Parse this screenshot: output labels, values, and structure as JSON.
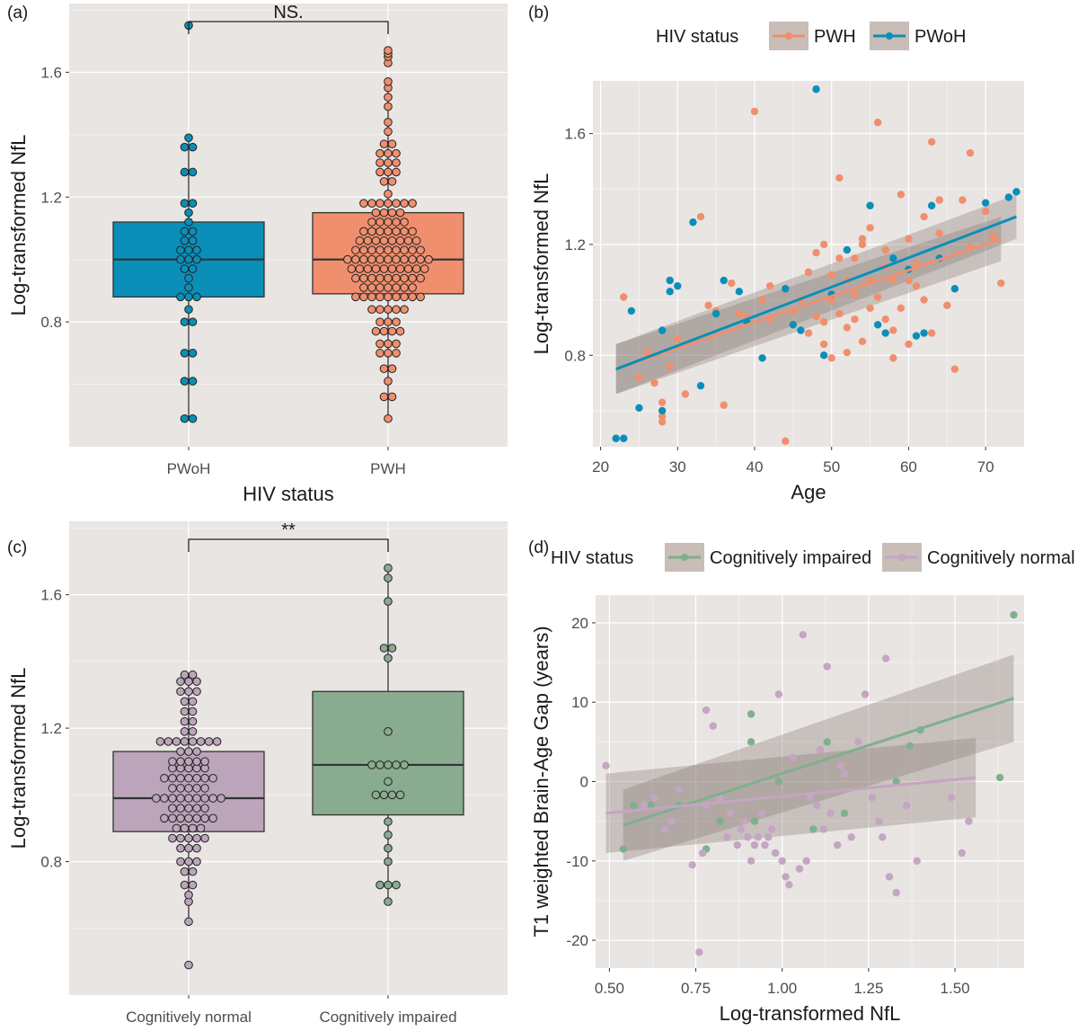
{
  "chart_data": [
    {
      "id": "a",
      "type": "boxplot-dotplot",
      "panel_label": "(a)",
      "xlabel": "HIV status",
      "ylabel": "Log-transformed NfL",
      "categories": [
        "PWoH",
        "PWH"
      ],
      "colors": [
        "#0a8fb8",
        "#f08f6e"
      ],
      "ylim": [
        0.4,
        1.82
      ],
      "yticks": [
        0.8,
        1.2,
        1.6
      ],
      "ytick_labels": [
        "0.8",
        "1.2",
        "1.6"
      ],
      "significance": "NS.",
      "boxes": [
        {
          "q1": 0.88,
          "median": 1.0,
          "q3": 1.12,
          "whisker_low": 0.49,
          "whisker_high": 1.39
        },
        {
          "q1": 0.89,
          "median": 1.0,
          "q3": 1.15,
          "whisker_low": 0.49,
          "whisker_high": 1.57
        }
      ],
      "points": [
        [
          0.49,
          0.49,
          0.61,
          0.61,
          0.7,
          0.7,
          0.8,
          0.8,
          0.84,
          0.88,
          0.88,
          0.88,
          0.91,
          0.94,
          0.97,
          0.97,
          1.0,
          1.0,
          1.0,
          1.03,
          1.03,
          1.03,
          1.06,
          1.06,
          1.09,
          1.09,
          1.12,
          1.15,
          1.18,
          1.18,
          1.28,
          1.28,
          1.36,
          1.36,
          1.39,
          1.75
        ],
        [
          0.49,
          0.56,
          0.56,
          0.61,
          0.65,
          0.65,
          0.7,
          0.7,
          0.7,
          0.73,
          0.73,
          0.73,
          0.77,
          0.77,
          0.77,
          0.77,
          0.8,
          0.8,
          0.8,
          0.84,
          0.84,
          0.84,
          0.84,
          0.84,
          0.88,
          0.88,
          0.88,
          0.88,
          0.88,
          0.88,
          0.88,
          0.88,
          0.88,
          0.91,
          0.91,
          0.91,
          0.91,
          0.91,
          0.91,
          0.91,
          0.94,
          0.94,
          0.94,
          0.94,
          0.94,
          0.94,
          0.94,
          0.94,
          0.94,
          0.97,
          0.97,
          0.97,
          0.97,
          0.97,
          0.97,
          0.97,
          0.97,
          0.97,
          0.97,
          1.0,
          1.0,
          1.0,
          1.0,
          1.0,
          1.0,
          1.0,
          1.0,
          1.0,
          1.0,
          1.0,
          1.03,
          1.03,
          1.03,
          1.03,
          1.03,
          1.03,
          1.03,
          1.03,
          1.03,
          1.06,
          1.06,
          1.06,
          1.06,
          1.06,
          1.06,
          1.06,
          1.06,
          1.09,
          1.09,
          1.09,
          1.09,
          1.09,
          1.09,
          1.09,
          1.12,
          1.12,
          1.12,
          1.12,
          1.12,
          1.15,
          1.15,
          1.15,
          1.15,
          1.18,
          1.18,
          1.18,
          1.18,
          1.18,
          1.18,
          1.18,
          1.21,
          1.25,
          1.25,
          1.28,
          1.28,
          1.28,
          1.31,
          1.31,
          1.31,
          1.34,
          1.34,
          1.34,
          1.37,
          1.37,
          1.41,
          1.44,
          1.49,
          1.52,
          1.55,
          1.57,
          1.63,
          1.65,
          1.66,
          1.67
        ]
      ]
    },
    {
      "id": "b",
      "type": "scatter",
      "panel_label": "(b)",
      "xlabel": "Age",
      "ylabel": "Log-transformed NfL",
      "legend_title": "HIV status",
      "legend_position": "top",
      "xlim": [
        19,
        75
      ],
      "ylim": [
        0.47,
        1.79
      ],
      "xticks": [
        20,
        30,
        40,
        50,
        60,
        70
      ],
      "xtick_labels": [
        "20",
        "30",
        "40",
        "50",
        "60",
        "70"
      ],
      "yticks": [
        0.8,
        1.2,
        1.6
      ],
      "ytick_labels": [
        "0.8",
        "1.2",
        "1.6"
      ],
      "series": [
        {
          "name": "PWH",
          "color": "#f08f6e",
          "fit": {
            "x0": 22,
            "y0": 0.75,
            "x1": 72,
            "y1": 1.22,
            "se0": 0.09,
            "se1": 0.08
          },
          "x": [
            23,
            25,
            26,
            27,
            28,
            28,
            28,
            29,
            31,
            33,
            34,
            35,
            36,
            37,
            38,
            39,
            40,
            41,
            42,
            44,
            45,
            46,
            47,
            48,
            49,
            49,
            50,
            50,
            51,
            51,
            52,
            52,
            53,
            53,
            54,
            54,
            55,
            55,
            56,
            56,
            57,
            57,
            58,
            58,
            59,
            59,
            60,
            60,
            61,
            62,
            62,
            63,
            63,
            64,
            65,
            66,
            67,
            68,
            68,
            70,
            71,
            72,
            42,
            30,
            49,
            51,
            55,
            47,
            52,
            57,
            61,
            64,
            48,
            53,
            58,
            60,
            54,
            50
          ],
          "y": [
            1.01,
            0.72,
            0.81,
            0.7,
            0.63,
            0.58,
            0.56,
            0.76,
            0.66,
            1.3,
            0.98,
            0.96,
            0.62,
            1.06,
            0.95,
            0.94,
            1.68,
            1.0,
            0.93,
            0.49,
            0.96,
            1.0,
            0.88,
            1.17,
            0.84,
            0.92,
            1.0,
            1.09,
            1.44,
            0.95,
            0.81,
            1.07,
            1.15,
            0.93,
            1.2,
            0.85,
            0.97,
            1.07,
            1.64,
            1.01,
            1.12,
            0.93,
            1.07,
            0.79,
            1.38,
            0.97,
            1.22,
            0.84,
            1.05,
            1.3,
            1.0,
            1.57,
            0.88,
            1.36,
            0.98,
            0.75,
            1.36,
            1.53,
            1.19,
            1.32,
            1.23,
            1.06,
            1.05,
            0.86,
            1.2,
            1.15,
            1.26,
            1.1,
            0.9,
            1.18,
            1.13,
            1.24,
            0.94,
            1.02,
            0.89,
            1.07,
            1.22,
            0.79
          ]
        },
        {
          "name": "PWoH",
          "color": "#0a8fb8",
          "fit": {
            "x0": 22,
            "y0": 0.75,
            "x1": 74,
            "y1": 1.3,
            "se0": 0.09,
            "se1": 0.08
          },
          "x": [
            22,
            23,
            24,
            25,
            28,
            28,
            29,
            29,
            30,
            32,
            33,
            35,
            36,
            38,
            39,
            41,
            44,
            45,
            46,
            48,
            49,
            50,
            52,
            55,
            56,
            57,
            58,
            60,
            61,
            62,
            63,
            64,
            66,
            70,
            73,
            74
          ],
          "y": [
            0.5,
            0.5,
            0.96,
            0.61,
            0.89,
            0.6,
            1.07,
            1.03,
            1.05,
            1.28,
            0.69,
            0.95,
            1.07,
            1.03,
            0.92,
            0.79,
            1.04,
            0.91,
            0.89,
            1.76,
            0.8,
            1.02,
            1.18,
            1.34,
            0.91,
            0.88,
            1.15,
            1.11,
            0.87,
            0.88,
            1.34,
            1.15,
            1.04,
            1.35,
            1.37,
            1.39
          ]
        }
      ]
    },
    {
      "id": "c",
      "type": "boxplot-dotplot",
      "panel_label": "(c)",
      "xlabel": "",
      "ylabel": "Log-transformed NfL",
      "categories": [
        "Cognitively normal",
        "Cognitively impaired"
      ],
      "colors": [
        "#bca5ba",
        "#89ab8f"
      ],
      "ylim": [
        0.4,
        1.82
      ],
      "yticks": [
        0.8,
        1.2,
        1.6
      ],
      "ytick_labels": [
        "0.8",
        "1.2",
        "1.6"
      ],
      "significance": "**",
      "boxes": [
        {
          "q1": 0.89,
          "median": 0.99,
          "q3": 1.13,
          "whisker_low": 0.62,
          "whisker_high": 1.36
        },
        {
          "q1": 0.94,
          "median": 1.09,
          "q3": 1.31,
          "whisker_low": 0.68,
          "whisker_high": 1.68
        }
      ],
      "points": [
        [
          0.49,
          0.62,
          0.68,
          0.7,
          0.73,
          0.73,
          0.77,
          0.77,
          0.8,
          0.8,
          0.8,
          0.84,
          0.84,
          0.84,
          0.87,
          0.87,
          0.87,
          0.87,
          0.87,
          0.9,
          0.9,
          0.9,
          0.9,
          0.93,
          0.93,
          0.93,
          0.93,
          0.93,
          0.93,
          0.93,
          0.96,
          0.96,
          0.96,
          0.96,
          0.96,
          0.99,
          0.99,
          0.99,
          0.99,
          0.99,
          0.99,
          0.99,
          0.99,
          0.99,
          1.02,
          1.02,
          1.02,
          1.02,
          1.02,
          1.05,
          1.05,
          1.05,
          1.05,
          1.05,
          1.05,
          1.05,
          1.08,
          1.08,
          1.08,
          1.08,
          1.08,
          1.1,
          1.1,
          1.1,
          1.1,
          1.1,
          1.13,
          1.13,
          1.13,
          1.16,
          1.16,
          1.16,
          1.16,
          1.16,
          1.16,
          1.16,
          1.16,
          1.19,
          1.19,
          1.22,
          1.22,
          1.25,
          1.25,
          1.28,
          1.28,
          1.31,
          1.31,
          1.31,
          1.34,
          1.34,
          1.34,
          1.36,
          1.36
        ],
        [
          0.68,
          0.73,
          0.73,
          0.73,
          0.8,
          0.84,
          0.88,
          0.92,
          1.0,
          1.0,
          1.0,
          1.0,
          1.04,
          1.09,
          1.09,
          1.09,
          1.09,
          1.09,
          1.19,
          1.41,
          1.44,
          1.44,
          1.58,
          1.65,
          1.68
        ]
      ]
    },
    {
      "id": "d",
      "type": "scatter",
      "panel_label": "(d)",
      "xlabel": "Log-transformed NfL",
      "ylabel": "T1 weighted Brain-Age Gap (years)",
      "legend_title": "HIV status",
      "legend_position": "top",
      "xlim": [
        0.46,
        1.7
      ],
      "ylim": [
        -23.5,
        23.5
      ],
      "xticks": [
        0.5,
        0.75,
        1.0,
        1.25,
        1.5
      ],
      "xtick_labels": [
        "0.50",
        "0.75",
        "1.00",
        "1.25",
        "1.50"
      ],
      "yticks": [
        -20,
        -10,
        0,
        10,
        20
      ],
      "ytick_labels": [
        "-20",
        "-10",
        "0",
        "10",
        "20"
      ],
      "series": [
        {
          "name": "Cognitively impaired",
          "color": "#7fb08c",
          "fit": {
            "x0": 0.54,
            "y0": -5.5,
            "x1": 1.67,
            "y1": 10.5,
            "se0": 4.5,
            "se1": 5.5
          },
          "x": [
            0.54,
            0.57,
            0.62,
            0.7,
            0.78,
            0.82,
            0.91,
            0.91,
            0.92,
            0.99,
            1.09,
            1.13,
            1.18,
            1.33,
            1.37,
            1.4,
            1.63,
            1.67
          ],
          "y": [
            -8.5,
            -3,
            -3,
            -3,
            -8.5,
            -5,
            5,
            8.5,
            -5,
            0,
            -6,
            5,
            -4,
            0,
            4.5,
            6.5,
            0.5,
            21
          ]
        },
        {
          "name": "Cognitively normal",
          "color": "#c4a5c2",
          "fit": {
            "x0": 0.49,
            "y0": -4.0,
            "x1": 1.56,
            "y1": 0.5,
            "se0": 5.0,
            "se1": 5.0
          },
          "x": [
            0.49,
            0.6,
            0.63,
            0.66,
            0.68,
            0.7,
            0.74,
            0.76,
            0.77,
            0.78,
            0.78,
            0.8,
            0.82,
            0.84,
            0.85,
            0.87,
            0.88,
            0.89,
            0.9,
            0.91,
            0.92,
            0.93,
            0.94,
            0.95,
            0.96,
            0.97,
            0.98,
            0.99,
            1.0,
            1.01,
            1.02,
            1.03,
            1.05,
            1.06,
            1.07,
            1.08,
            1.1,
            1.11,
            1.12,
            1.13,
            1.14,
            1.16,
            1.17,
            1.18,
            1.2,
            1.22,
            1.24,
            1.26,
            1.28,
            1.29,
            1.3,
            1.31,
            1.33,
            1.36,
            1.39,
            1.49,
            1.52,
            1.54
          ],
          "y": [
            2,
            -3,
            -2,
            -6,
            -5,
            -1,
            -10.5,
            -21.5,
            -9,
            -3,
            9,
            7,
            -2,
            -7,
            -4,
            -8,
            -6,
            -5,
            -7,
            -10,
            -8,
            -7,
            -4,
            -8,
            -7,
            -6,
            -9,
            11,
            -10,
            -12,
            -13,
            3,
            -11,
            18.5,
            -10,
            -2,
            -3,
            4,
            -6,
            14.5,
            -4,
            -8,
            2,
            1,
            -7,
            5,
            11,
            -2,
            -5,
            -7,
            15.5,
            -12,
            -14,
            -3,
            -10,
            -2,
            -9,
            -5
          ]
        }
      ]
    }
  ]
}
